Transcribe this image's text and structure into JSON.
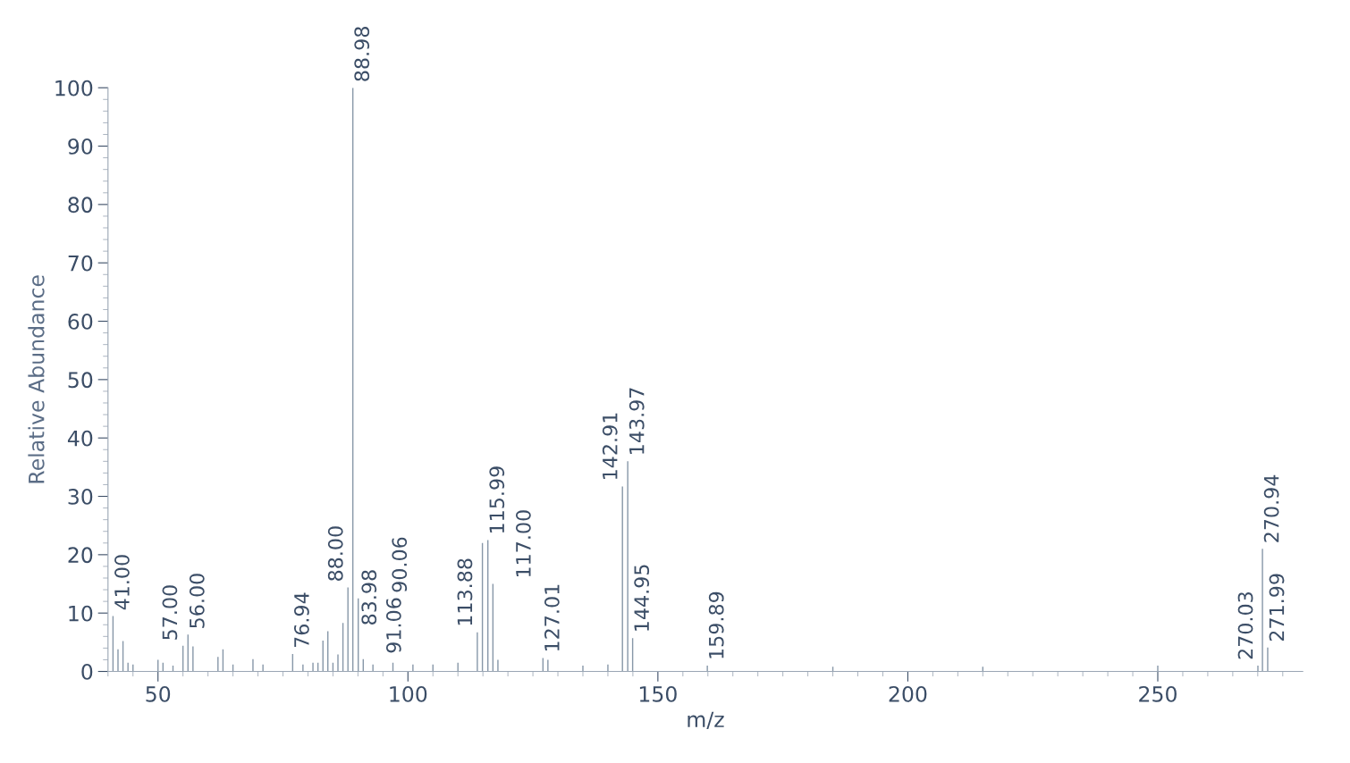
{
  "chart_data": {
    "type": "bar",
    "xlabel": "m/z",
    "ylabel": "Relative Abundance",
    "x": [
      41.0,
      42,
      43,
      44,
      45,
      50,
      51,
      53,
      55,
      56.0,
      57.0,
      62,
      63,
      65,
      69,
      71,
      76.94,
      79,
      81,
      82,
      83,
      83.98,
      85,
      86,
      87,
      88.0,
      88.98,
      90.06,
      91.06,
      93,
      97,
      101,
      105,
      110,
      113.88,
      114.9,
      115.99,
      117.0,
      118,
      127.01,
      128,
      135,
      140,
      142.91,
      143.97,
      144.95,
      159.89,
      185,
      215,
      250,
      270.03,
      270.94,
      271.99
    ],
    "values": [
      9.5,
      3.8,
      5.2,
      1.5,
      1.2,
      2.0,
      1.5,
      1.0,
      4.4,
      6.3,
      4.3,
      2.5,
      3.8,
      1.2,
      2.1,
      1.2,
      3.0,
      1.2,
      1.5,
      1.5,
      5.3,
      6.9,
      1.5,
      2.9,
      8.3,
      14.4,
      100,
      12.5,
      2.1,
      1.2,
      1.5,
      1.2,
      1.2,
      1.5,
      6.7,
      22.0,
      22.5,
      15.0,
      2.0,
      2.3,
      2.0,
      1.0,
      1.2,
      31.7,
      36.0,
      5.7,
      1.0,
      0.8,
      0.8,
      1.0,
      1.0,
      21.0,
      4.1
    ],
    "color": "#8797a8",
    "xlim": [
      40,
      279
    ],
    "xticks": [
      50,
      100,
      150,
      200,
      250
    ],
    "ylim": [
      0,
      100
    ],
    "yticks": [
      0,
      10,
      20,
      30,
      40,
      50,
      60,
      70,
      80,
      90,
      100
    ],
    "grid": false,
    "annotations": [
      {
        "text": "41.00",
        "x": 41.0,
        "y": 9.5
      },
      {
        "text": "56.00",
        "x": 56.0,
        "y": 6.3
      },
      {
        "text": "57.00",
        "x": 57.0,
        "y": 4.3
      },
      {
        "text": "76.94",
        "x": 76.94,
        "y": 3.0
      },
      {
        "text": "83.98",
        "x": 83.98,
        "y": 6.9
      },
      {
        "text": "88.00",
        "x": 88.0,
        "y": 14.4
      },
      {
        "text": "88.98",
        "x": 88.98,
        "y": 100
      },
      {
        "text": "90.06",
        "x": 90.06,
        "y": 12.5
      },
      {
        "text": "91.06",
        "x": 91.06,
        "y": 2.1
      },
      {
        "text": "113.88",
        "x": 113.88,
        "y": 6.7
      },
      {
        "text": "115.99",
        "x": 115.99,
        "y": 22.5
      },
      {
        "text": "117.00",
        "x": 117.0,
        "y": 15.0
      },
      {
        "text": "127.01",
        "x": 127.01,
        "y": 2.3
      },
      {
        "text": "142.91",
        "x": 142.91,
        "y": 31.7
      },
      {
        "text": "143.97",
        "x": 143.97,
        "y": 36.0
      },
      {
        "text": "144.95",
        "x": 144.95,
        "y": 5.7
      },
      {
        "text": "159.89",
        "x": 159.89,
        "y": 1.0
      },
      {
        "text": "270.03",
        "x": 270.03,
        "y": 1.0
      },
      {
        "text": "270.94",
        "x": 270.94,
        "y": 21.0
      },
      {
        "text": "271.99",
        "x": 271.99,
        "y": 4.1
      }
    ]
  }
}
